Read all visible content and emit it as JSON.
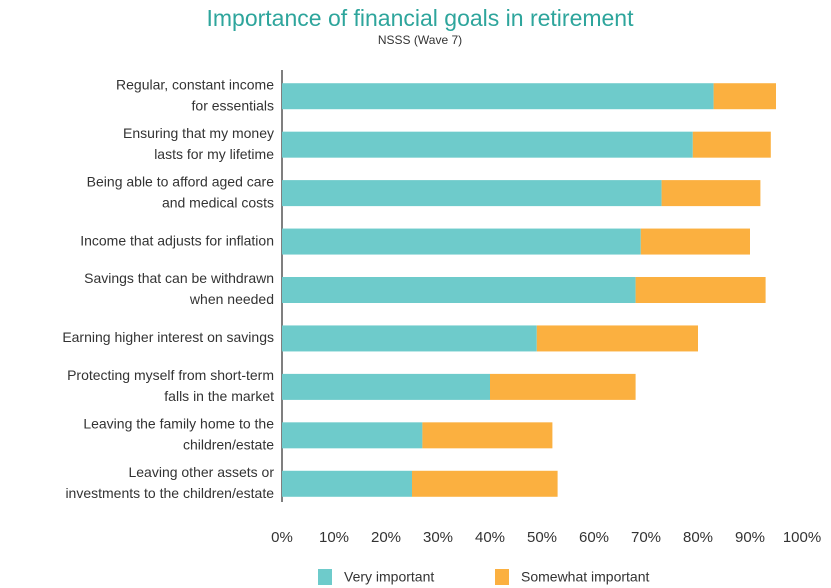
{
  "chart_data": {
    "type": "stacked_barh",
    "title": "Importance of financial goals in retirement",
    "subtitle": "NSSS (Wave 7)",
    "categories": [
      [
        "Regular, constant income",
        "for essentials"
      ],
      [
        "Ensuring that my money",
        "lasts for my lifetime"
      ],
      [
        "Being able to afford aged care",
        "and medical costs"
      ],
      [
        "Income that adjusts for inflation"
      ],
      [
        "Savings that can be withdrawn",
        "when needed"
      ],
      [
        "Earning higher interest on savings"
      ],
      [
        "Protecting myself from short-term",
        "falls in the market"
      ],
      [
        "Leaving the family home to the",
        "children/estate"
      ],
      [
        "Leaving other assets or",
        "investments to the children/estate"
      ]
    ],
    "series": [
      {
        "name": "Very important",
        "color": "#6ecbcb",
        "values": [
          83,
          79,
          73,
          69,
          68,
          49,
          40,
          27,
          25
        ]
      },
      {
        "name": "Somewhat important",
        "color": "#fbb040",
        "values": [
          12,
          15,
          19,
          21,
          25,
          31,
          28,
          25,
          28
        ]
      }
    ],
    "xlim": [
      0,
      100
    ],
    "xticks": [
      {
        "value": 0,
        "label": "0%"
      },
      {
        "value": 10,
        "label": "10%"
      },
      {
        "value": 20,
        "label": "20%"
      },
      {
        "value": 30,
        "label": "30%"
      },
      {
        "value": 40,
        "label": "40%"
      },
      {
        "value": 50,
        "label": "50%"
      },
      {
        "value": 60,
        "label": "60%"
      },
      {
        "value": 70,
        "label": "70%"
      },
      {
        "value": 80,
        "label": "80%"
      },
      {
        "value": 90,
        "label": "90%"
      },
      {
        "value": 100,
        "label": "100%"
      }
    ],
    "legend": "bottom"
  }
}
